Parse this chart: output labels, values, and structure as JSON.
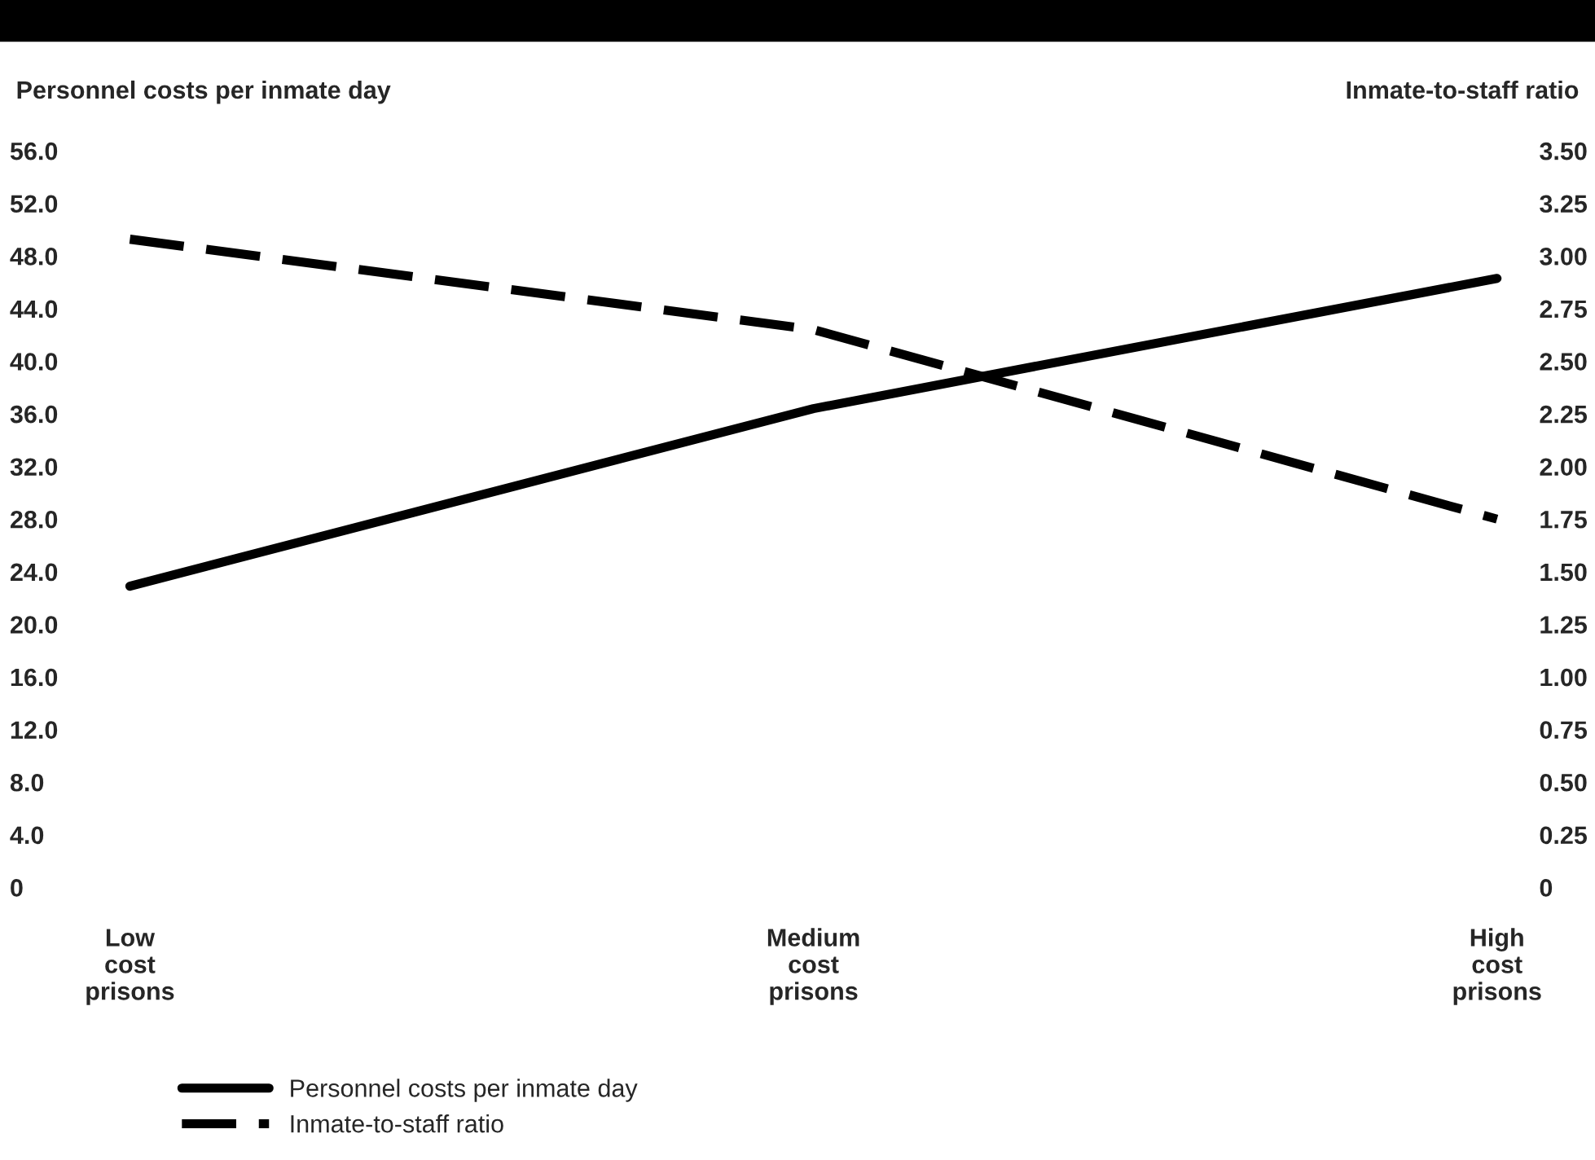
{
  "chart_data": {
    "type": "line",
    "ylabel": "Personnel costs per inmate day",
    "y2label": "Inmate-to-staff ratio",
    "categories": [
      "Low\ncost\nprisons",
      "Medium\ncost\nprisons",
      "High\ncost\nprisons"
    ],
    "series": [
      {
        "name": "Personnel costs per inmate day",
        "color": "#000000",
        "values": [
          22.9,
          36.4,
          46.3
        ],
        "line_style": "solid"
      },
      {
        "name": "Inmate-to-staff ratio",
        "color": "#000000",
        "values": [
          3.08,
          2.65,
          1.75
        ],
        "line_style": "dashed",
        "axis": "y2"
      }
    ],
    "ylim": [
      0,
      56
    ],
    "yticks": [
      0,
      {
        "value": 4,
        "label": "4.0"
      },
      {
        "value": 8,
        "label": "8.0"
      },
      {
        "value": 12,
        "label": "12.0"
      },
      {
        "value": 16,
        "label": "16.0"
      },
      {
        "value": 20,
        "label": "20.0"
      },
      {
        "value": 24,
        "label": "24.0"
      },
      {
        "value": 28,
        "label": "28.0"
      },
      {
        "value": 32,
        "label": "32.0"
      },
      {
        "value": 36,
        "label": "36.0"
      },
      {
        "value": 40,
        "label": "40.0"
      },
      {
        "value": 44,
        "label": "44.0"
      },
      {
        "value": 48,
        "label": "48.0"
      },
      {
        "value": 52,
        "label": "52.0"
      },
      {
        "value": 56,
        "label": "56.0"
      }
    ],
    "y2lim": [
      0,
      3.5
    ],
    "y2ticks": [
      0,
      {
        "value": 0.25,
        "label": "0.25"
      },
      {
        "value": 0.5,
        "label": "0.50"
      },
      {
        "value": 0.75,
        "label": "0.75"
      },
      {
        "value": 1,
        "label": "1.00"
      },
      {
        "value": 1.25,
        "label": "1.25"
      },
      {
        "value": 1.5,
        "label": "1.50"
      },
      {
        "value": 1.75,
        "label": "1.75"
      },
      {
        "value": 2,
        "label": "2.00"
      },
      {
        "value": 2.25,
        "label": "2.25"
      },
      {
        "value": 2.5,
        "label": "2.50"
      },
      {
        "value": 2.75,
        "label": "2.75"
      },
      {
        "value": 3,
        "label": "3.00"
      },
      {
        "value": 3.25,
        "label": "3.25"
      },
      {
        "value": 3.5,
        "label": "3.50"
      }
    ],
    "grid": false,
    "legend": "bottom left",
    "marker": "none"
  }
}
